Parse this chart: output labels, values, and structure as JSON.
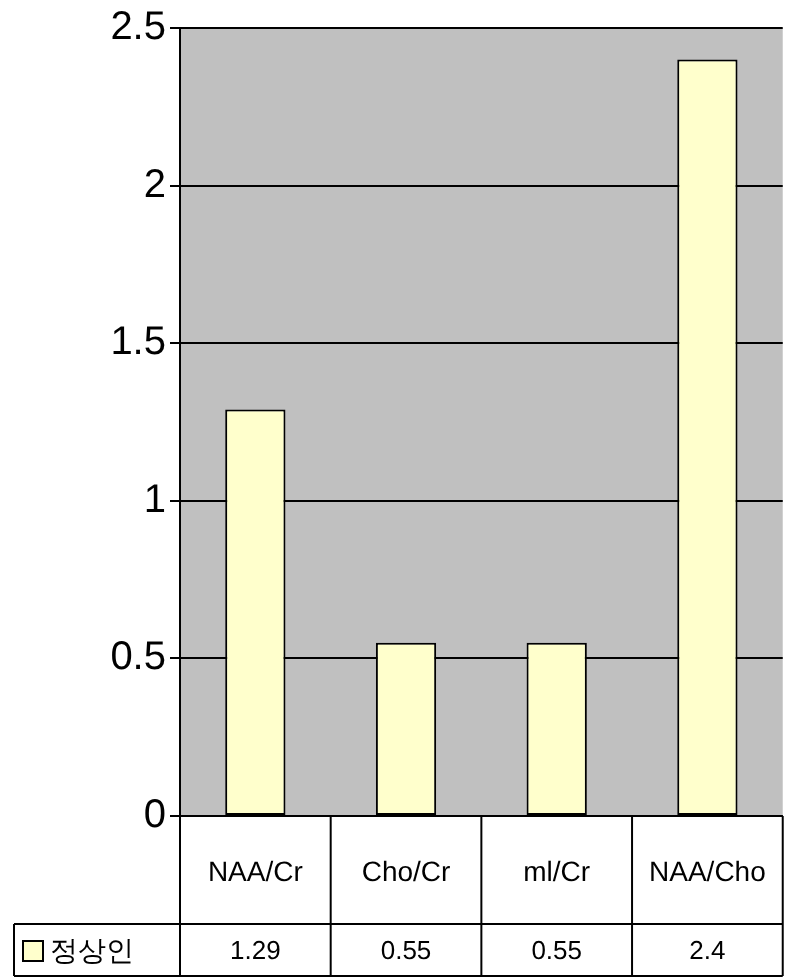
{
  "chart_data": {
    "type": "bar",
    "categories": [
      "NAA/Cr",
      "Cho/Cr",
      "ml/Cr",
      "NAA/Cho"
    ],
    "series": [
      {
        "name": "정상인",
        "color": "#ffffcc",
        "values": [
          1.29,
          0.55,
          0.55,
          2.4
        ]
      }
    ],
    "ylim": [
      0,
      2.5
    ],
    "yticks": [
      0,
      0.5,
      1,
      1.5,
      2,
      2.5
    ],
    "grid": "y",
    "legend": "bottom left",
    "data_labels": true
  }
}
